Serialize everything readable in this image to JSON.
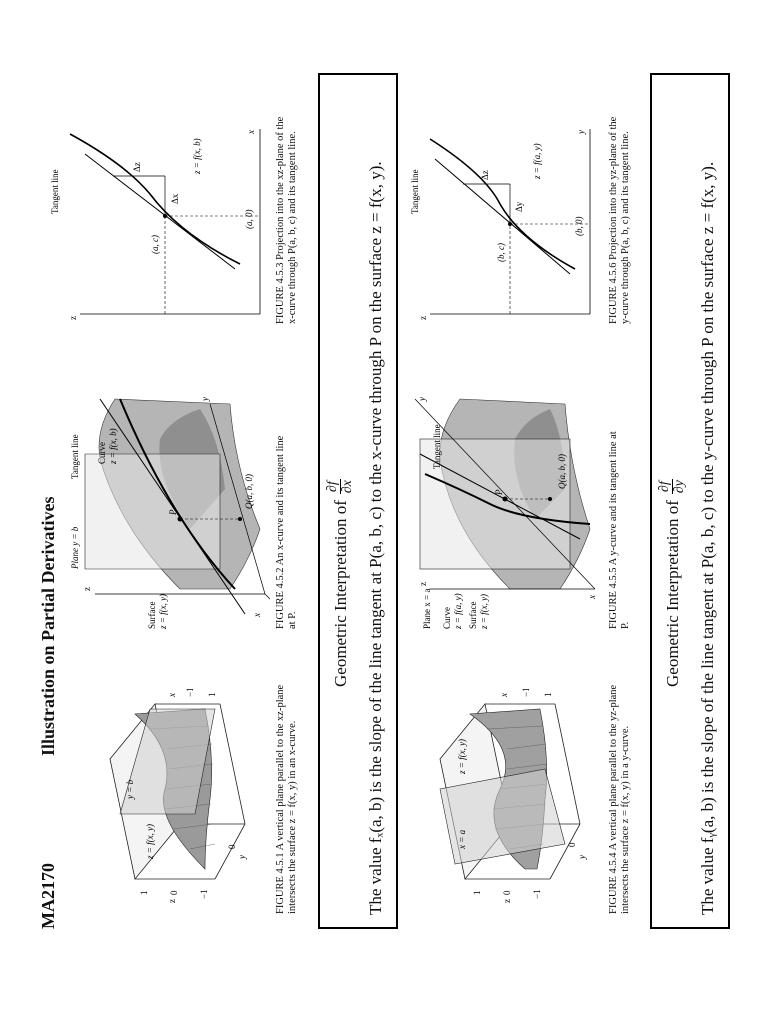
{
  "header": {
    "course": "MA2170",
    "title": "Illustration on Partial Derivatives"
  },
  "row1": {
    "fig1": {
      "caption": "FIGURE 4.5.1 A vertical plane parallel to the xz-plane intersects the surface z = f(x, y) in an x-curve.",
      "labels": {
        "z": "z",
        "one": "1",
        "zero": "0",
        "minus_one": "−1",
        "surface": "z = f(x, y)",
        "plane": "y = b",
        "x": "x",
        "y": "y",
        "t0": "0",
        "t1": "1",
        "tm1": "−1"
      }
    },
    "fig2": {
      "caption": "FIGURE 4.5.2 An x-curve and its tangent line at P.",
      "labels": {
        "plane": "Plane y = b",
        "tangent": "Tangent line",
        "curve": "Curve",
        "curve_eq": "z = f(x, b)",
        "surface": "Surface",
        "surface_eq": "z = f(x, y)",
        "Q": "Q(a, b, 0)",
        "P": "P",
        "x": "x",
        "y": "y",
        "z": "z"
      }
    },
    "fig3": {
      "caption": "FIGURE 4.5.3 Projection into the xz-plane of the x-curve through P(a, b, c) and its tangent line.",
      "labels": {
        "tangent": "Tangent line",
        "dz": "Δz",
        "dx": "Δx",
        "point": "(a, c)",
        "curve": "z = f(x, b)",
        "base": "(a, 0)",
        "x": "x",
        "z": "z"
      }
    },
    "geo_prefix": "Geometric Interpretation of",
    "geo_num": "∂f",
    "geo_den": "∂x",
    "statement": "The value fₓ(a, b) is the slope of the line tangent at P(a, b, c) to the x-curve through P on the surface z = f(x, y)."
  },
  "row2": {
    "fig4": {
      "caption": "FIGURE 4.5.4 A vertical plane parallel to the yz-plane intersects the surface z = f(x, y) in a y-curve.",
      "labels": {
        "z": "z",
        "one": "1",
        "zero": "0",
        "minus_one": "−1",
        "surface": "z = f(x, y)",
        "plane": "x = a",
        "x": "x",
        "y": "y",
        "t0": "0",
        "t1": "1",
        "tm1": "−1"
      }
    },
    "fig5": {
      "caption": "FIGURE 4.5.5 A y-curve and its tangent line at P.",
      "labels": {
        "plane": "Plane x = a",
        "curve": "Curve",
        "curve_eq": "z = f(a, y)",
        "surface": "Surface",
        "surface_eq": "z = f(x, y)",
        "tangent": "Tangent line",
        "Q": "Q(a, b, 0)",
        "P": "P",
        "x": "x",
        "y": "y",
        "z": "z"
      }
    },
    "fig6": {
      "caption": "FIGURE 4.5.6 Projection into the yz-plane of the y-curve through P(a, b, c) and its tangent line.",
      "labels": {
        "tangent": "Tangent line",
        "dz": "Δz",
        "dy": "Δy",
        "point": "(b, c)",
        "curve": "z = f(a, y)",
        "base": "(b, 0)",
        "y": "y",
        "z": "z"
      }
    },
    "geo_prefix": "Geometric Interpretation of",
    "geo_num": "∂f",
    "geo_den": "∂y",
    "statement": "The value fᵧ(a, b) is the slope of the line tangent at P(a, b, c) to the y-curve through P on the surface z = f(x, y)."
  }
}
